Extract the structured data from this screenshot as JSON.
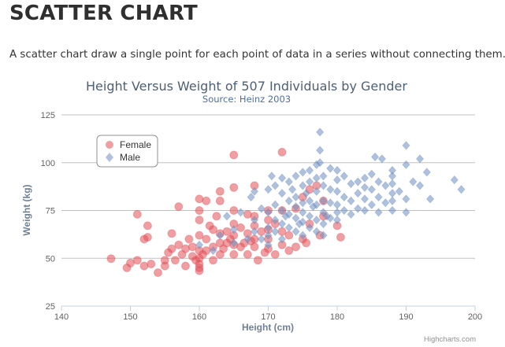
{
  "page": {
    "title": "SCATTER CHART",
    "description": "A scatter chart draw a single point for each point of data in a series without connecting them."
  },
  "credits": "Highcharts.com",
  "chart_data": {
    "type": "scatter",
    "title": "Height Versus Weight of 507 Individuals by Gender",
    "subtitle": "Source: Heinz 2003",
    "xlabel": "Height (cm)",
    "ylabel": "Weight (kg)",
    "xlim": [
      140,
      200
    ],
    "ylim": [
      25,
      125
    ],
    "xticks": [
      140,
      150,
      160,
      170,
      180,
      190,
      200
    ],
    "yticks": [
      25,
      50,
      75,
      100,
      125
    ],
    "grid": true,
    "legend_position": "top-left",
    "series": [
      {
        "name": "Female",
        "marker": "circle",
        "color": "#e24e55",
        "points": [
          [
            147.2,
            49.8
          ],
          [
            149.5,
            45.0
          ],
          [
            150.0,
            47.5
          ],
          [
            151.0,
            49.0
          ],
          [
            151.0,
            73.0
          ],
          [
            152.0,
            46.0
          ],
          [
            152.0,
            60.0
          ],
          [
            152.5,
            67.0
          ],
          [
            152.5,
            61.0
          ],
          [
            153.0,
            47.0
          ],
          [
            154.0,
            42.5
          ],
          [
            155.0,
            49.0
          ],
          [
            155.0,
            46.0
          ],
          [
            155.5,
            53.0
          ],
          [
            156.0,
            55.0
          ],
          [
            156.0,
            63.0
          ],
          [
            156.5,
            49.0
          ],
          [
            157.0,
            77.0
          ],
          [
            157.0,
            57.0
          ],
          [
            157.5,
            52.0
          ],
          [
            158.0,
            55.0
          ],
          [
            158.0,
            46.0
          ],
          [
            158.5,
            60.0
          ],
          [
            159.0,
            51.0
          ],
          [
            159.0,
            56.0
          ],
          [
            159.5,
            49.0
          ],
          [
            160.0,
            81.0
          ],
          [
            160.0,
            75.0
          ],
          [
            160.0,
            70.0
          ],
          [
            160.0,
            62.0
          ],
          [
            160.0,
            54.0
          ],
          [
            160.0,
            50.0
          ],
          [
            160.0,
            47.0
          ],
          [
            160.0,
            45.0
          ],
          [
            160.0,
            43.5
          ],
          [
            160.5,
            52.0
          ],
          [
            161.0,
            80.0
          ],
          [
            161.0,
            60.0
          ],
          [
            161.0,
            54.0
          ],
          [
            161.5,
            67.0
          ],
          [
            162.0,
            65.0
          ],
          [
            162.0,
            56.0
          ],
          [
            162.0,
            49.0
          ],
          [
            162.5,
            72.0
          ],
          [
            163.0,
            85.0
          ],
          [
            163.0,
            80.0
          ],
          [
            163.0,
            63.0
          ],
          [
            163.0,
            58.0
          ],
          [
            163.0,
            52.0
          ],
          [
            163.5,
            55.0
          ],
          [
            164.0,
            64.0
          ],
          [
            164.0,
            58.0
          ],
          [
            164.5,
            60.0
          ],
          [
            165.0,
            104.0
          ],
          [
            165.0,
            87.0
          ],
          [
            165.0,
            75.0
          ],
          [
            165.0,
            68.0
          ],
          [
            165.0,
            62.0
          ],
          [
            165.0,
            57.0
          ],
          [
            165.0,
            52.0
          ],
          [
            166.0,
            66.0
          ],
          [
            166.0,
            56.0
          ],
          [
            166.5,
            58.0
          ],
          [
            167.0,
            73.0
          ],
          [
            167.0,
            63.0
          ],
          [
            167.0,
            52.0
          ],
          [
            167.5,
            59.0
          ],
          [
            168.0,
            88.0
          ],
          [
            168.0,
            72.0
          ],
          [
            168.0,
            67.0
          ],
          [
            168.0,
            60.0
          ],
          [
            168.0,
            56.0
          ],
          [
            168.5,
            49.0
          ],
          [
            169.0,
            64.0
          ],
          [
            169.5,
            53.0
          ],
          [
            170.0,
            75.0
          ],
          [
            170.0,
            70.0
          ],
          [
            170.0,
            65.0
          ],
          [
            170.0,
            60.0
          ],
          [
            170.0,
            55.0
          ],
          [
            171.0,
            68.0
          ],
          [
            171.0,
            52.0
          ],
          [
            172.0,
            105.5
          ],
          [
            172.0,
            75.0
          ],
          [
            172.0,
            64.0
          ],
          [
            172.0,
            57.0
          ],
          [
            173.0,
            62.0
          ],
          [
            173.0,
            54.0
          ],
          [
            174.0,
            76.0
          ],
          [
            174.0,
            56.0
          ],
          [
            175.0,
            82.0
          ],
          [
            175.0,
            60.0
          ],
          [
            175.5,
            58.0
          ],
          [
            176.0,
            86.0
          ],
          [
            176.0,
            68.0
          ],
          [
            177.0,
            88.0
          ],
          [
            177.5,
            62.0
          ],
          [
            178.0,
            80.0
          ],
          [
            178.0,
            72.0
          ],
          [
            180.0,
            67.0
          ],
          [
            180.5,
            61.0
          ]
        ]
      },
      {
        "name": "Male",
        "marker": "diamond",
        "color": "#6e8ec1",
        "points": [
          [
            160.0,
            57.0
          ],
          [
            162.0,
            54.0
          ],
          [
            163.0,
            62.0
          ],
          [
            164.0,
            72.0
          ],
          [
            165.0,
            65.0
          ],
          [
            165.0,
            58.0
          ],
          [
            166.0,
            74.0
          ],
          [
            167.0,
            60.0
          ],
          [
            167.5,
            82.0
          ],
          [
            168.0,
            85.0
          ],
          [
            168.0,
            70.0
          ],
          [
            168.0,
            64.0
          ],
          [
            169.0,
            76.0
          ],
          [
            169.0,
            60.0
          ],
          [
            170.0,
            86.0
          ],
          [
            170.0,
            74.0
          ],
          [
            170.0,
            66.0
          ],
          [
            170.0,
            62.0
          ],
          [
            170.0,
            57.0
          ],
          [
            170.5,
            93.0
          ],
          [
            171.0,
            88.0
          ],
          [
            171.0,
            78.0
          ],
          [
            171.0,
            70.0
          ],
          [
            171.0,
            64.0
          ],
          [
            172.0,
            92.0
          ],
          [
            172.0,
            84.0
          ],
          [
            172.0,
            75.0
          ],
          [
            172.0,
            68.0
          ],
          [
            172.0,
            60.0
          ],
          [
            172.5,
            72.0
          ],
          [
            173.0,
            90.0
          ],
          [
            173.0,
            80.0
          ],
          [
            173.0,
            73.0
          ],
          [
            173.0,
            66.0
          ],
          [
            173.5,
            86.0
          ],
          [
            174.0,
            93.0
          ],
          [
            174.0,
            82.0
          ],
          [
            174.0,
            77.0
          ],
          [
            174.0,
            71.0
          ],
          [
            174.0,
            64.0
          ],
          [
            174.5,
            68.0
          ],
          [
            175.0,
            95.0
          ],
          [
            175.0,
            88.0
          ],
          [
            175.0,
            79.0
          ],
          [
            175.0,
            74.0
          ],
          [
            175.0,
            69.0
          ],
          [
            175.0,
            62.0
          ],
          [
            175.5,
            84.0
          ],
          [
            176.0,
            96.0
          ],
          [
            176.0,
            90.0
          ],
          [
            176.0,
            80.0
          ],
          [
            176.0,
            72.0
          ],
          [
            176.0,
            66.0
          ],
          [
            176.5,
            77.0
          ],
          [
            177.0,
            99.0
          ],
          [
            177.0,
            92.0
          ],
          [
            177.0,
            85.0
          ],
          [
            177.0,
            78.0
          ],
          [
            177.0,
            70.0
          ],
          [
            177.0,
            64.0
          ],
          [
            177.5,
            116.0
          ],
          [
            177.5,
            106.5
          ],
          [
            177.5,
            100.0
          ],
          [
            178.0,
            93.0
          ],
          [
            178.0,
            88.0
          ],
          [
            178.0,
            80.0
          ],
          [
            178.0,
            74.0
          ],
          [
            178.0,
            68.0
          ],
          [
            178.0,
            62.0
          ],
          [
            178.5,
            72.0
          ],
          [
            179.0,
            97.0
          ],
          [
            179.0,
            86.0
          ],
          [
            179.0,
            79.0
          ],
          [
            179.0,
            71.0
          ],
          [
            180.0,
            96.0
          ],
          [
            180.0,
            91.0
          ],
          [
            180.0,
            85.0
          ],
          [
            180.0,
            78.0
          ],
          [
            180.0,
            74.0
          ],
          [
            180.0,
            70.0
          ],
          [
            181.0,
            93.0
          ],
          [
            181.0,
            82.0
          ],
          [
            181.0,
            75.0
          ],
          [
            182.0,
            89.0
          ],
          [
            182.0,
            80.0
          ],
          [
            182.0,
            73.0
          ],
          [
            183.0,
            90.0
          ],
          [
            183.0,
            84.0
          ],
          [
            183.0,
            76.0
          ],
          [
            184.0,
            92.0
          ],
          [
            184.0,
            87.0
          ],
          [
            184.0,
            81.0
          ],
          [
            184.0,
            75.0
          ],
          [
            185.0,
            94.0
          ],
          [
            185.0,
            86.0
          ],
          [
            185.0,
            78.0
          ],
          [
            185.5,
            103.0
          ],
          [
            186.0,
            90.0
          ],
          [
            186.0,
            82.0
          ],
          [
            186.0,
            74.0
          ],
          [
            186.5,
            102.0
          ],
          [
            187.0,
            88.0
          ],
          [
            187.0,
            79.0
          ],
          [
            188.0,
            96.0
          ],
          [
            188.0,
            93.0
          ],
          [
            188.0,
            89.0
          ],
          [
            188.0,
            84.0
          ],
          [
            188.0,
            80.0
          ],
          [
            188.0,
            75.0
          ],
          [
            189.0,
            85.0
          ],
          [
            190.0,
            109.0
          ],
          [
            190.0,
            99.0
          ],
          [
            190.0,
            81.0
          ],
          [
            190.0,
            74.0
          ],
          [
            191.0,
            90.0
          ],
          [
            192.0,
            102.0
          ],
          [
            192.0,
            88.0
          ],
          [
            193.0,
            95.0
          ],
          [
            193.5,
            81.0
          ],
          [
            197.0,
            91.0
          ],
          [
            198.0,
            86.0
          ]
        ]
      }
    ]
  }
}
